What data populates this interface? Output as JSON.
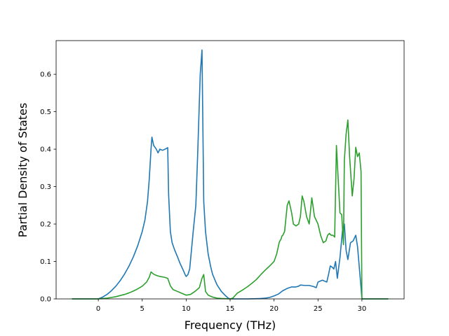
{
  "chart_data": {
    "type": "line",
    "title": "",
    "xlabel": "Frequency (THz)",
    "ylabel": "Partial Density of States",
    "xlim": [
      -4.8,
      34.8
    ],
    "ylim": [
      0,
      0.69
    ],
    "xticks": [
      0,
      5,
      10,
      15,
      20,
      25,
      30
    ],
    "yticks": [
      0.0,
      0.1,
      0.2,
      0.3,
      0.4,
      0.5,
      0.6
    ],
    "xtick_labels": [
      "0",
      "5",
      "10",
      "15",
      "20",
      "25",
      "30"
    ],
    "ytick_labels": [
      "0.0",
      "0.1",
      "0.2",
      "0.3",
      "0.4",
      "0.5",
      "0.6"
    ],
    "grid": false,
    "legend": "none",
    "series": [
      {
        "color": "#1f77b4",
        "x": [
          -3,
          -1,
          0,
          0.5,
          1,
          1.5,
          2,
          2.5,
          3,
          3.5,
          4,
          4.5,
          5,
          5.3,
          5.6,
          5.8,
          6.0,
          6.1,
          6.3,
          6.6,
          6.8,
          7.0,
          7.3,
          7.6,
          7.9,
          8.0,
          8.2,
          8.4,
          8.7,
          9.0,
          9.3,
          9.6,
          9.9,
          10.0,
          10.2,
          10.4,
          10.6,
          10.8,
          11.1,
          11.3,
          11.6,
          11.8,
          12.0,
          12.2,
          12.5,
          12.8,
          13.0,
          13.5,
          14.0,
          14.5,
          14.8,
          15.0,
          16,
          17,
          18,
          18.5,
          19,
          19.5,
          20,
          20.5,
          21,
          21.5,
          22,
          22.5,
          22.8,
          23,
          23.5,
          24,
          24.5,
          24.8,
          25,
          25.5,
          26,
          26.2,
          26.4,
          26.6,
          26.8,
          27.0,
          27.2,
          27.5,
          27.8,
          28.0,
          28.2,
          28.4,
          28.7,
          29.0,
          29.3,
          29.5,
          29.7,
          29.9,
          30,
          31,
          33
        ],
        "y": [
          0,
          0,
          0.0,
          0.005,
          0.012,
          0.022,
          0.034,
          0.049,
          0.067,
          0.088,
          0.113,
          0.143,
          0.18,
          0.21,
          0.26,
          0.32,
          0.4,
          0.432,
          0.41,
          0.4,
          0.39,
          0.4,
          0.397,
          0.4,
          0.404,
          0.28,
          0.18,
          0.15,
          0.13,
          0.113,
          0.095,
          0.08,
          0.064,
          0.06,
          0.065,
          0.08,
          0.13,
          0.18,
          0.25,
          0.38,
          0.6,
          0.665,
          0.26,
          0.18,
          0.12,
          0.085,
          0.066,
          0.038,
          0.02,
          0.008,
          0.002,
          0,
          0,
          0,
          0.0005,
          0.001,
          0.002,
          0.004,
          0.008,
          0.013,
          0.022,
          0.028,
          0.032,
          0.032,
          0.034,
          0.037,
          0.036,
          0.036,
          0.033,
          0.03,
          0.045,
          0.05,
          0.045,
          0.065,
          0.088,
          0.085,
          0.08,
          0.1,
          0.055,
          0.11,
          0.185,
          0.2,
          0.13,
          0.105,
          0.15,
          0.155,
          0.17,
          0.14,
          0.085,
          0.03,
          0,
          0,
          0
        ]
      },
      {
        "color": "#2ca02c",
        "x": [
          -3,
          -1,
          0,
          0.5,
          1,
          1.5,
          2,
          2.5,
          3,
          3.5,
          4,
          4.5,
          5,
          5.5,
          5.8,
          6.0,
          6.3,
          6.7,
          7.0,
          7.5,
          7.9,
          8.2,
          8.5,
          9.0,
          9.5,
          10.0,
          10.5,
          11.0,
          11.5,
          11.8,
          12.0,
          12.2,
          12.5,
          13.0,
          13.5,
          14.0,
          14.5,
          15.0,
          15.3,
          15.8,
          16.5,
          17.0,
          17.5,
          18.0,
          18.5,
          19.0,
          19.5,
          20.0,
          20.3,
          20.6,
          20.8,
          20.9,
          21.0,
          21.2,
          21.5,
          21.7,
          22.0,
          22.2,
          22.5,
          22.8,
          23.0,
          23.2,
          23.4,
          23.7,
          24.0,
          24.3,
          24.6,
          25.0,
          25.3,
          25.6,
          25.9,
          26.1,
          26.3,
          26.5,
          26.7,
          26.9,
          27.1,
          27.3,
          27.5,
          27.7,
          27.9,
          28.0,
          28.2,
          28.4,
          28.6,
          28.9,
          29.1,
          29.3,
          29.5,
          29.7,
          29.9,
          30,
          31,
          33
        ],
        "y": [
          0,
          0,
          0.0,
          0.001,
          0.002,
          0.004,
          0.006,
          0.009,
          0.012,
          0.016,
          0.021,
          0.027,
          0.034,
          0.045,
          0.058,
          0.072,
          0.066,
          0.062,
          0.06,
          0.058,
          0.055,
          0.035,
          0.025,
          0.02,
          0.015,
          0.01,
          0.012,
          0.02,
          0.03,
          0.055,
          0.065,
          0.02,
          0.01,
          0.005,
          0.002,
          0.001,
          0.0005,
          0,
          0.002,
          0.015,
          0.025,
          0.033,
          0.042,
          0.052,
          0.065,
          0.077,
          0.088,
          0.1,
          0.12,
          0.152,
          0.16,
          0.168,
          0.17,
          0.18,
          0.25,
          0.262,
          0.23,
          0.2,
          0.195,
          0.2,
          0.22,
          0.275,
          0.26,
          0.22,
          0.2,
          0.27,
          0.22,
          0.2,
          0.17,
          0.15,
          0.155,
          0.17,
          0.175,
          0.17,
          0.17,
          0.165,
          0.41,
          0.32,
          0.23,
          0.225,
          0.145,
          0.37,
          0.44,
          0.478,
          0.38,
          0.275,
          0.32,
          0.405,
          0.38,
          0.39,
          0.34,
          0,
          0,
          0
        ]
      }
    ]
  }
}
